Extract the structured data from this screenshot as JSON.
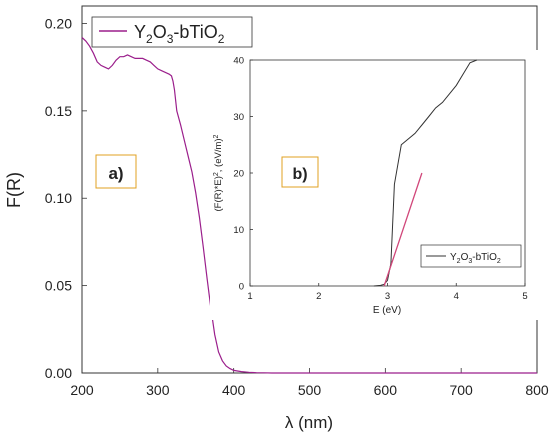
{
  "chart_data": [
    {
      "panel": "main",
      "type": "line",
      "xlabel": "λ (nm)",
      "ylabel": "F(R)",
      "xlim": [
        200,
        800
      ],
      "ylim": [
        0,
        0.21
      ],
      "xticks": [
        200,
        300,
        400,
        500,
        600,
        700,
        800
      ],
      "yticks": [
        0.0,
        0.05,
        0.1,
        0.15,
        0.2
      ],
      "xtick_labels": [
        "200",
        "300",
        "400",
        "500",
        "600",
        "700",
        "800"
      ],
      "ytick_labels": [
        "0.00",
        "0.05",
        "0.10",
        "0.15",
        "0.20"
      ],
      "grid": false,
      "legend_position": "top-left",
      "panel_label": "a)",
      "series": [
        {
          "name": "Y2O3-bTiO2",
          "color": "#9b1f8c",
          "x": [
            200,
            205,
            210,
            215,
            220,
            225,
            230,
            235,
            240,
            245,
            250,
            255,
            260,
            265,
            270,
            275,
            280,
            285,
            290,
            295,
            300,
            305,
            310,
            315,
            318,
            320,
            322,
            325,
            330,
            335,
            340,
            345,
            350,
            355,
            360,
            365,
            370,
            375,
            380,
            385,
            390,
            395,
            400,
            410,
            420,
            430,
            440,
            450,
            500,
            600,
            700,
            800
          ],
          "y": [
            0.192,
            0.19,
            0.187,
            0.183,
            0.178,
            0.176,
            0.175,
            0.174,
            0.176,
            0.179,
            0.181,
            0.181,
            0.182,
            0.181,
            0.18,
            0.18,
            0.18,
            0.179,
            0.178,
            0.176,
            0.174,
            0.173,
            0.172,
            0.171,
            0.17,
            0.167,
            0.162,
            0.15,
            0.142,
            0.133,
            0.124,
            0.115,
            0.103,
            0.089,
            0.072,
            0.054,
            0.037,
            0.022,
            0.012,
            0.007,
            0.004,
            0.0025,
            0.0015,
            0.0008,
            0.0004,
            0.0002,
            0.0001,
            0.0,
            0.0,
            0.0,
            0.0,
            0.0
          ]
        }
      ]
    },
    {
      "panel": "inset",
      "type": "line",
      "xlabel": "E (eV)",
      "ylabel": "(F(R)*E)2, (eV/m)2",
      "xlim": [
        1,
        5
      ],
      "ylim": [
        0,
        40
      ],
      "xticks": [
        1,
        2,
        3,
        4,
        5
      ],
      "yticks": [
        0,
        10,
        20,
        30,
        40
      ],
      "xtick_labels": [
        "1",
        "2",
        "3",
        "4",
        "5"
      ],
      "ytick_labels": [
        "0",
        "10",
        "20",
        "30",
        "40"
      ],
      "grid": false,
      "legend_position": "bottom-right",
      "panel_label": "b)",
      "series": [
        {
          "name": "Y2O3-bTiO2",
          "color": "#333333",
          "x": [
            2.8,
            2.9,
            2.95,
            3.0,
            3.05,
            3.1,
            3.2,
            3.3,
            3.4,
            3.5,
            3.6,
            3.7,
            3.8,
            3.9,
            4.0,
            4.1,
            4.2,
            4.3
          ],
          "y": [
            0.0,
            0.1,
            0.3,
            1.0,
            4.0,
            18.0,
            25.0,
            26.0,
            27.0,
            28.5,
            30.0,
            31.5,
            32.5,
            34.0,
            35.5,
            37.5,
            39.5,
            40.0
          ]
        },
        {
          "name": "",
          "color": "#d1477a",
          "x": [
            2.95,
            3.5
          ],
          "y": [
            0.0,
            20.0
          ]
        }
      ]
    }
  ]
}
